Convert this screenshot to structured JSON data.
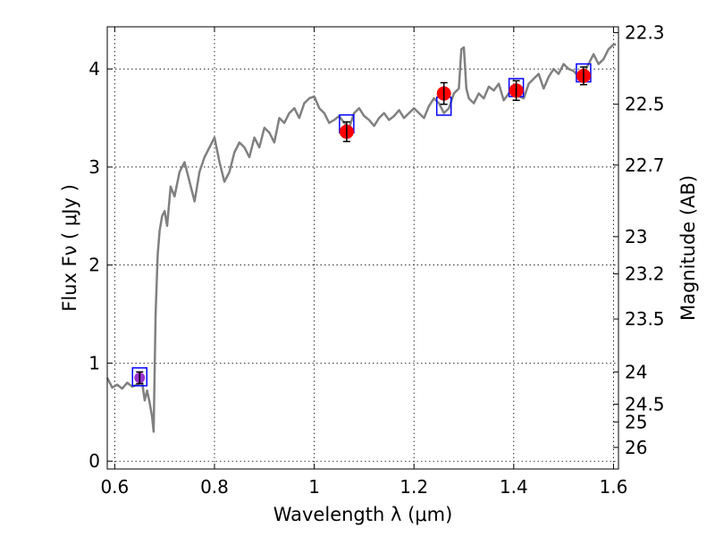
{
  "chart_data": {
    "type": "scatter",
    "title": "",
    "xlabel": "Wavelength  λ (μm)",
    "ylabel": "Flux  Fν  ( μJy )",
    "ylabel_right": "Magnitude (AB)",
    "xlim": [
      0.585,
      1.61
    ],
    "ylim": [
      -0.08,
      4.43
    ],
    "grid": true,
    "x_ticks": [
      0.6,
      0.8,
      1.0,
      1.2,
      1.4,
      1.6
    ],
    "x_tick_labels": [
      "0.6",
      "0.8",
      "1",
      "1.2",
      "1.4",
      "1.6"
    ],
    "y_ticks": [
      0,
      1,
      2,
      3,
      4
    ],
    "y_tick_labels": [
      "0",
      "1",
      "2",
      "3",
      "4"
    ],
    "right_ticks": [
      {
        "label": "22.3",
        "flux": 4.37
      },
      {
        "label": "22.5",
        "flux": 3.64
      },
      {
        "label": "22.7",
        "flux": 3.02
      },
      {
        "label": "23",
        "flux": 2.29
      },
      {
        "label": "23.2",
        "flux": 1.91
      },
      {
        "label": "23.5",
        "flux": 1.45
      },
      {
        "label": "24",
        "flux": 0.91
      },
      {
        "label": "24.5",
        "flux": 0.58
      },
      {
        "label": "25",
        "flux": 0.4
      },
      {
        "label": "26",
        "flux": 0.14
      }
    ],
    "series": [
      {
        "kind": "model-spectrum",
        "color": "#808080",
        "x": [
          0.585,
          0.595,
          0.605,
          0.615,
          0.625,
          0.635,
          0.645,
          0.655,
          0.66,
          0.665,
          0.67,
          0.675,
          0.678,
          0.682,
          0.686,
          0.69,
          0.695,
          0.7,
          0.705,
          0.712,
          0.72,
          0.73,
          0.74,
          0.75,
          0.76,
          0.77,
          0.78,
          0.79,
          0.8,
          0.81,
          0.82,
          0.83,
          0.84,
          0.85,
          0.86,
          0.87,
          0.88,
          0.89,
          0.9,
          0.91,
          0.92,
          0.93,
          0.94,
          0.95,
          0.96,
          0.97,
          0.98,
          0.99,
          1.0,
          1.01,
          1.02,
          1.03,
          1.04,
          1.05,
          1.06,
          1.07,
          1.08,
          1.09,
          1.1,
          1.11,
          1.12,
          1.13,
          1.14,
          1.15,
          1.16,
          1.17,
          1.18,
          1.19,
          1.2,
          1.21,
          1.22,
          1.23,
          1.24,
          1.25,
          1.26,
          1.27,
          1.28,
          1.29,
          1.295,
          1.3,
          1.305,
          1.31,
          1.32,
          1.33,
          1.34,
          1.35,
          1.36,
          1.37,
          1.38,
          1.39,
          1.4,
          1.41,
          1.42,
          1.43,
          1.44,
          1.45,
          1.46,
          1.47,
          1.48,
          1.49,
          1.5,
          1.51,
          1.52,
          1.53,
          1.54,
          1.55,
          1.56,
          1.57,
          1.58,
          1.59,
          1.6,
          1.605
        ],
        "y": [
          0.85,
          0.75,
          0.78,
          0.74,
          0.8,
          0.76,
          0.78,
          0.8,
          0.62,
          0.72,
          0.6,
          0.45,
          0.3,
          1.5,
          2.1,
          2.35,
          2.5,
          2.55,
          2.4,
          2.8,
          2.7,
          2.95,
          3.05,
          2.85,
          2.65,
          2.95,
          3.1,
          3.2,
          3.3,
          3.05,
          2.85,
          2.95,
          3.15,
          3.25,
          3.2,
          3.1,
          3.3,
          3.2,
          3.4,
          3.35,
          3.25,
          3.5,
          3.45,
          3.55,
          3.6,
          3.5,
          3.65,
          3.7,
          3.72,
          3.6,
          3.55,
          3.45,
          3.48,
          3.52,
          3.45,
          3.4,
          3.55,
          3.6,
          3.52,
          3.48,
          3.42,
          3.5,
          3.55,
          3.48,
          3.52,
          3.58,
          3.5,
          3.55,
          3.6,
          3.55,
          3.5,
          3.62,
          3.7,
          3.65,
          3.55,
          3.6,
          3.75,
          3.8,
          4.2,
          4.22,
          3.8,
          3.7,
          3.65,
          3.75,
          3.7,
          3.82,
          3.78,
          3.85,
          3.68,
          3.75,
          3.8,
          3.72,
          3.7,
          3.85,
          3.9,
          3.95,
          3.8,
          3.92,
          4.0,
          3.95,
          4.05,
          4.0,
          3.98,
          3.92,
          3.95,
          4.05,
          4.15,
          4.05,
          4.1,
          4.2,
          4.25,
          4.25
        ]
      },
      {
        "kind": "model-photometry",
        "color": "#0000ff",
        "x": [
          0.65,
          1.065,
          1.26,
          1.405,
          1.54
        ],
        "y": [
          0.86,
          3.44,
          3.62,
          3.81,
          3.96
        ]
      },
      {
        "kind": "observed-photometry",
        "color": "#ff0000",
        "x": [
          0.65,
          1.065,
          1.26,
          1.405,
          1.54
        ],
        "y": [
          0.85,
          3.36,
          3.75,
          3.78,
          3.93
        ],
        "err": [
          0.06,
          0.1,
          0.11,
          0.1,
          0.09
        ],
        "first_point_color": "#9932cc"
      }
    ]
  }
}
